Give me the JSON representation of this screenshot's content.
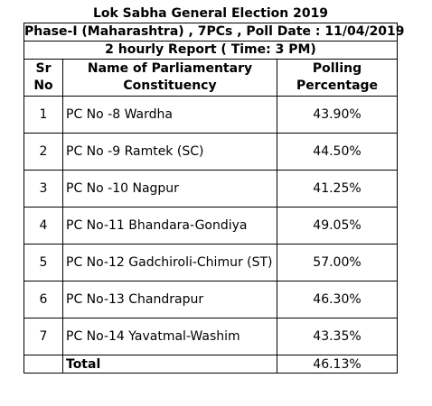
{
  "report": {
    "title_line1": "Lok Sabha General Election 2019",
    "title_line2": "Phase-I (Maharashtra) , 7PCs , Poll Date : 11/04/2019",
    "title_line3": "2 hourly Report ( Time: 3 PM)"
  },
  "table": {
    "headers": {
      "sr_no": "Sr No",
      "constituency": "Name of Parliamentary Constituency",
      "polling": "Polling Percentage"
    },
    "rows": [
      {
        "sr": "1",
        "name": "PC No -8  Wardha",
        "pct": "43.90%"
      },
      {
        "sr": "2",
        "name": "PC No -9  Ramtek (SC)",
        "pct": "44.50%"
      },
      {
        "sr": "3",
        "name": "PC No -10 Nagpur",
        "pct": "41.25%"
      },
      {
        "sr": "4",
        "name": "PC No-11 Bhandara-Gondiya",
        "pct": "49.05%"
      },
      {
        "sr": "5",
        "name": "PC No-12 Gadchiroli-Chimur (ST)",
        "pct": "57.00%"
      },
      {
        "sr": "6",
        "name": "PC No-13 Chandrapur",
        "pct": "46.30%"
      },
      {
        "sr": "7",
        "name": "PC No-14 Yavatmal-Washim",
        "pct": "43.35%"
      }
    ],
    "total": {
      "label": "Total",
      "pct": "46.13%"
    }
  }
}
